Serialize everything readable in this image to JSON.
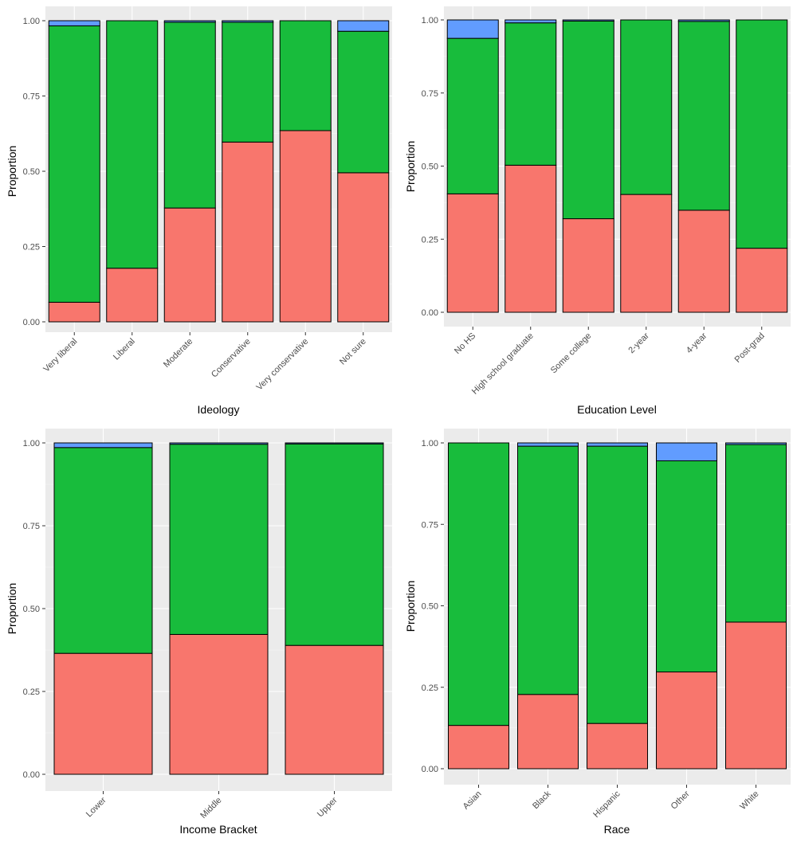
{
  "colors": {
    "panel_background": "#EBEBEB",
    "grid_major": "#FFFFFF",
    "bar_outline": "#000000",
    "series": [
      "#F8766D",
      "#18BC3C",
      "#619CFF"
    ]
  },
  "chart_data": [
    {
      "type": "bar",
      "stacked": true,
      "xlabel": "Ideology",
      "ylabel": "Proportion",
      "categories": [
        "Very liberal",
        "Liberal",
        "Moderate",
        "Conservative",
        "Very conservative",
        "Not sure"
      ],
      "series": [
        {
          "values": [
            0.065,
            0.178,
            0.378,
            0.597,
            0.635,
            0.495
          ]
        },
        {
          "values": [
            0.918,
            0.822,
            0.617,
            0.398,
            0.365,
            0.47
          ]
        },
        {
          "values": [
            0.017,
            0.0,
            0.005,
            0.005,
            0.0,
            0.035
          ]
        }
      ],
      "ylim": [
        0,
        1
      ],
      "yticks": [
        "0.00",
        "0.25",
        "0.50",
        "0.75",
        "1.00"
      ],
      "grid": true
    },
    {
      "type": "bar",
      "stacked": true,
      "xlabel": "Education Level",
      "ylabel": "Proportion",
      "categories": [
        "No HS",
        "High school graduate",
        "Some college",
        "2-year",
        "4-year",
        "Post-grad"
      ],
      "series": [
        {
          "values": [
            0.405,
            0.503,
            0.32,
            0.403,
            0.349,
            0.219
          ]
        },
        {
          "values": [
            0.532,
            0.487,
            0.676,
            0.597,
            0.646,
            0.781
          ]
        },
        {
          "values": [
            0.063,
            0.01,
            0.004,
            0.0,
            0.005,
            0.0
          ]
        }
      ],
      "ylim": [
        0,
        1
      ],
      "yticks": [
        "0.00",
        "0.25",
        "0.50",
        "0.75",
        "1.00"
      ],
      "grid": true
    },
    {
      "type": "bar",
      "stacked": true,
      "xlabel": "Income Bracket",
      "ylabel": "Proportion",
      "categories": [
        "Lower",
        "Middle",
        "Upper"
      ],
      "series": [
        {
          "values": [
            0.365,
            0.422,
            0.389
          ]
        },
        {
          "values": [
            0.621,
            0.574,
            0.608
          ]
        },
        {
          "values": [
            0.014,
            0.004,
            0.003
          ]
        }
      ],
      "ylim": [
        0,
        1
      ],
      "yticks": [
        "0.00",
        "0.25",
        "0.50",
        "0.75",
        "1.00"
      ],
      "grid": true
    },
    {
      "type": "bar",
      "stacked": true,
      "xlabel": "Race",
      "ylabel": "Proportion",
      "categories": [
        "Asian",
        "Black",
        "Hispanic",
        "Other",
        "White"
      ],
      "series": [
        {
          "values": [
            0.133,
            0.228,
            0.139,
            0.297,
            0.45
          ]
        },
        {
          "values": [
            0.867,
            0.762,
            0.851,
            0.648,
            0.545
          ]
        },
        {
          "values": [
            0.0,
            0.01,
            0.01,
            0.055,
            0.005
          ]
        }
      ],
      "ylim": [
        0,
        1
      ],
      "yticks": [
        "0.00",
        "0.25",
        "0.50",
        "0.75",
        "1.00"
      ],
      "grid": true
    }
  ]
}
